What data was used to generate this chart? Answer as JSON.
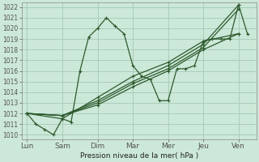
{
  "xlabel": "Pression niveau de la mer( hPa )",
  "bg_color": "#cce8d8",
  "grid_color": "#aaccbc",
  "line_color": "#2d5a2d",
  "yticks": [
    1010,
    1011,
    1012,
    1013,
    1014,
    1015,
    1016,
    1017,
    1018,
    1019,
    1020,
    1021,
    1022
  ],
  "xtick_labels": [
    "Lun",
    "Sam",
    "Dim",
    "Mar",
    "Mer",
    "Jeu",
    "Ven"
  ],
  "xtick_positions": [
    0,
    1,
    2,
    3,
    4,
    5,
    6
  ],
  "xlim": [
    -0.15,
    6.5
  ],
  "ylim": [
    1009.6,
    1022.4
  ],
  "s1_x": [
    0,
    0.25,
    0.5,
    0.75,
    1.0,
    1.25,
    1.5,
    1.75,
    2.0,
    2.25,
    2.5,
    2.75,
    3.0,
    3.25,
    3.5,
    3.75,
    4.0,
    4.25,
    4.5,
    4.75,
    5.0,
    5.25,
    5.5,
    5.75,
    6.0,
    6.25
  ],
  "s1_y": [
    1012.0,
    1011.0,
    1010.5,
    1010.0,
    1011.5,
    1011.2,
    1016.0,
    1019.2,
    1020.0,
    1021.0,
    1020.2,
    1019.5,
    1016.5,
    1015.5,
    1015.2,
    1013.2,
    1013.2,
    1016.2,
    1016.2,
    1016.5,
    1018.8,
    1019.0,
    1019.0,
    1019.0,
    1022.2,
    1019.5
  ],
  "s2_x": [
    0,
    1,
    2,
    3,
    4,
    5,
    6
  ],
  "s2_y": [
    1012.0,
    1011.8,
    1012.8,
    1014.5,
    1016.0,
    1018.0,
    1019.5
  ],
  "s3_x": [
    0,
    1,
    2,
    3,
    4,
    5,
    6
  ],
  "s3_y": [
    1012.0,
    1011.8,
    1013.0,
    1014.8,
    1016.2,
    1018.2,
    1021.8
  ],
  "s4_x": [
    0,
    1,
    2,
    3,
    4,
    5,
    6
  ],
  "s4_y": [
    1012.0,
    1011.8,
    1013.2,
    1015.0,
    1016.5,
    1018.5,
    1022.2
  ],
  "s5_x": [
    0,
    1,
    2,
    3,
    4,
    5,
    6
  ],
  "s5_y": [
    1012.0,
    1011.5,
    1013.5,
    1015.5,
    1016.8,
    1018.8,
    1019.5
  ]
}
